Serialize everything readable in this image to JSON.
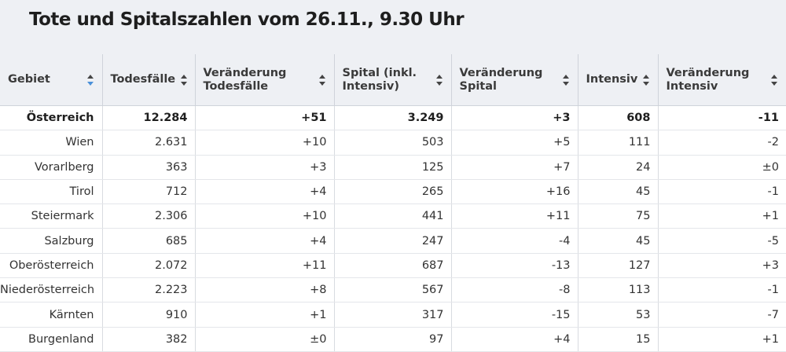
{
  "title": "Tote und Spitalszahlen vom 26.11., 9.30 Uhr",
  "colors": {
    "header_bg": "#eef0f4",
    "sort_active": "#4a90d9",
    "sort_inactive": "#444444"
  },
  "table": {
    "columns": [
      {
        "label": "Gebiet",
        "sort": "active-desc"
      },
      {
        "label": "Todesfälle",
        "sort": "none"
      },
      {
        "label": "Veränderung\nTodesfälle",
        "sort": "none"
      },
      {
        "label": "Spital (inkl.\nIntensiv)",
        "sort": "none"
      },
      {
        "label": "Veränderung\nSpital",
        "sort": "none"
      },
      {
        "label": "Intensiv",
        "sort": "none"
      },
      {
        "label": "Veränderung\nIntensiv",
        "sort": "none"
      }
    ],
    "rows": [
      [
        "Österreich",
        "12.284",
        "+51",
        "3.249",
        "+3",
        "608",
        "-11"
      ],
      [
        "Wien",
        "2.631",
        "+10",
        "503",
        "+5",
        "111",
        "-2"
      ],
      [
        "Vorarlberg",
        "363",
        "+3",
        "125",
        "+7",
        "24",
        "±0"
      ],
      [
        "Tirol",
        "712",
        "+4",
        "265",
        "+16",
        "45",
        "-1"
      ],
      [
        "Steiermark",
        "2.306",
        "+10",
        "441",
        "+11",
        "75",
        "+1"
      ],
      [
        "Salzburg",
        "685",
        "+4",
        "247",
        "-4",
        "45",
        "-5"
      ],
      [
        "Oberösterreich",
        "2.072",
        "+11",
        "687",
        "-13",
        "127",
        "+3"
      ],
      [
        "Niederösterreich",
        "2.223",
        "+8",
        "567",
        "-8",
        "113",
        "-1"
      ],
      [
        "Kärnten",
        "910",
        "+1",
        "317",
        "-15",
        "53",
        "-7"
      ],
      [
        "Burgenland",
        "382",
        "±0",
        "97",
        "+4",
        "15",
        "+1"
      ]
    ]
  }
}
